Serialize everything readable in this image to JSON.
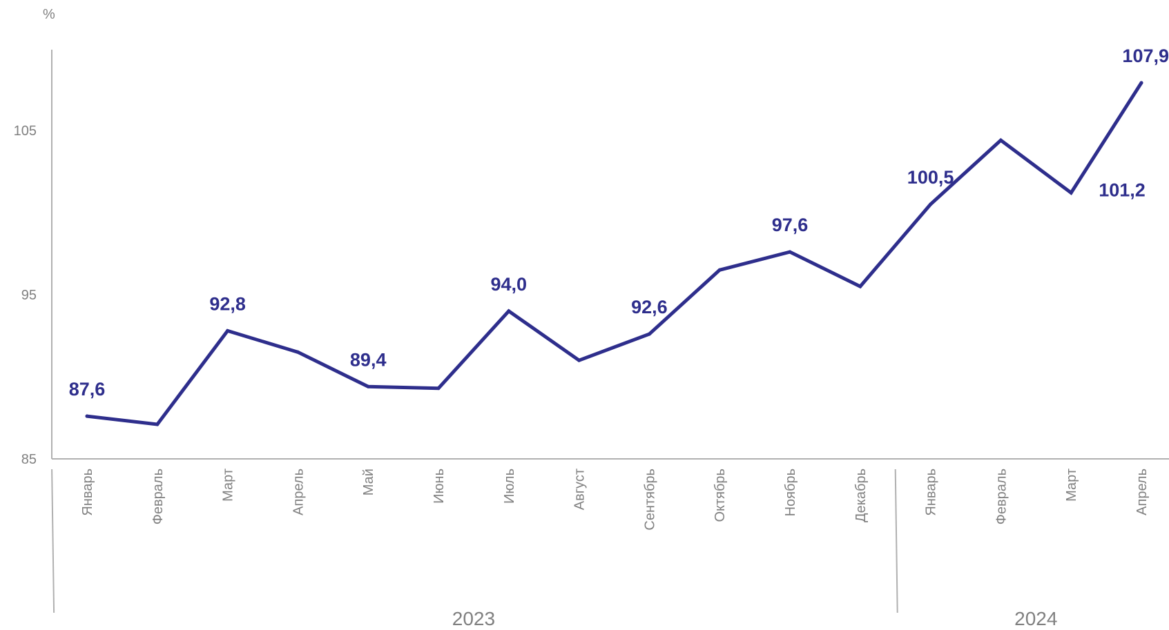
{
  "chart_data": {
    "type": "line",
    "unit_label": "%",
    "ylim": [
      85,
      110
    ],
    "yticks": [
      "85",
      "95",
      "105"
    ],
    "ytick_values": [
      85,
      95,
      105
    ],
    "categories": [
      "Январь",
      "Февраль",
      "Март",
      "Апрель",
      "Май",
      "Июнь",
      "Июль",
      "Август",
      "Сентябрь",
      "Октябрь",
      "Ноябрь",
      "Декабрь",
      "Январь",
      "Февраль",
      "Март",
      "Апрель"
    ],
    "years": [
      {
        "label": "2023",
        "months": 12
      },
      {
        "label": "2024",
        "months": 4
      }
    ],
    "series": [
      {
        "values": [
          87.6,
          87.1,
          92.8,
          91.5,
          89.4,
          89.3,
          94.0,
          91.0,
          92.6,
          96.5,
          97.6,
          95.5,
          100.5,
          104.4,
          101.2,
          107.9
        ],
        "point_labels": [
          "87,6",
          "",
          "92,8",
          "",
          "89,4",
          "",
          "94,0",
          "",
          "92,6",
          "",
          "97,6",
          "",
          "100,5",
          "",
          "101,2",
          "107,9"
        ],
        "color": "#2e2e8c"
      }
    ],
    "grid": false,
    "legend": "none"
  }
}
